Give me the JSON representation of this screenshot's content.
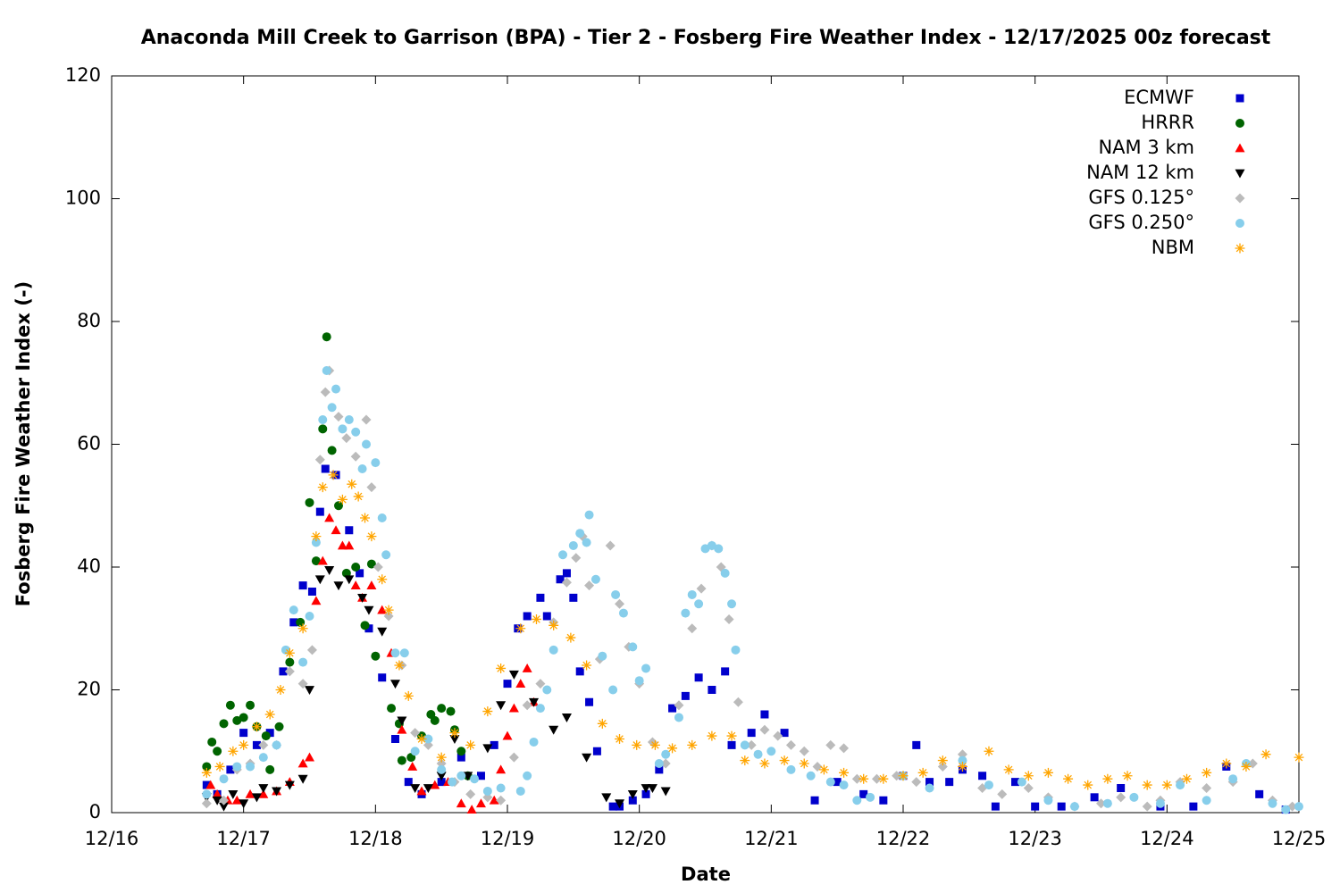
{
  "chart_data": {
    "type": "scatter",
    "title": "Anaconda Mill Creek to Garrison (BPA) - Tier 2 - Fosberg Fire Weather Index - 12/17/2025 00z forecast",
    "x_label": "Date",
    "y_label": "Fosberg Fire Weather Index (-)",
    "xlim": [
      0,
      9
    ],
    "xticks": [
      {
        "value": 0,
        "label": "12/16"
      },
      {
        "value": 1,
        "label": "12/17"
      },
      {
        "value": 2,
        "label": "12/18"
      },
      {
        "value": 3,
        "label": "12/19"
      },
      {
        "value": 4,
        "label": "12/20"
      },
      {
        "value": 5,
        "label": "12/21"
      },
      {
        "value": 6,
        "label": "12/22"
      },
      {
        "value": 7,
        "label": "12/23"
      },
      {
        "value": 8,
        "label": "12/24"
      },
      {
        "value": 9,
        "label": "12/25"
      }
    ],
    "ylim": [
      0,
      120
    ],
    "yticks": [
      0,
      20,
      40,
      60,
      80,
      100,
      120
    ],
    "grid": false,
    "legend": "top-right",
    "series": [
      {
        "name": "ECMWF",
        "color": "#0000cc",
        "marker": "square",
        "x": [
          0.72,
          0.8,
          0.9,
          1.0,
          1.1,
          1.2,
          1.3,
          1.38,
          1.45,
          1.52,
          1.58,
          1.62,
          1.7,
          1.8,
          1.88,
          1.95,
          2.05,
          2.15,
          2.25,
          2.35,
          2.5,
          2.65,
          2.8,
          2.9,
          3.0,
          3.08,
          3.15,
          3.25,
          3.3,
          3.4,
          3.45,
          3.5,
          3.55,
          3.62,
          3.68,
          3.8,
          3.85,
          3.95,
          4.05,
          4.15,
          4.25,
          4.35,
          4.45,
          4.55,
          4.65,
          4.7,
          4.85,
          4.95,
          5.1,
          5.33,
          5.5,
          5.7,
          5.85,
          6.0,
          6.1,
          6.2,
          6.35,
          6.45,
          6.6,
          6.7,
          6.85,
          7.0,
          7.2,
          7.45,
          7.65,
          7.95,
          8.2,
          8.45,
          8.7,
          8.9
        ],
        "values": [
          4.5,
          3,
          7,
          13,
          11,
          13,
          23,
          31,
          37,
          36,
          49,
          56,
          55,
          46,
          39,
          30,
          22,
          12,
          5,
          3,
          5,
          9,
          6,
          11,
          21,
          30,
          32,
          35,
          32,
          38,
          39,
          35,
          23,
          18,
          10,
          1,
          1,
          2,
          3,
          7,
          17,
          19,
          22,
          20,
          23,
          11,
          13,
          16,
          13,
          2,
          5,
          3,
          2,
          6,
          11,
          5,
          5,
          7,
          6,
          1,
          5,
          1,
          1,
          2.5,
          4,
          1,
          1,
          7.5,
          3,
          0.5
        ]
      },
      {
        "name": "HRRR",
        "color": "#006400",
        "marker": "circle",
        "x": [
          0.72,
          0.76,
          0.8,
          0.85,
          0.9,
          0.95,
          1.0,
          1.05,
          1.1,
          1.17,
          1.2,
          1.27,
          1.35,
          1.43,
          1.5,
          1.55,
          1.6,
          1.63,
          1.67,
          1.72,
          1.78,
          1.85,
          1.92,
          1.97,
          2.0,
          2.12,
          2.18,
          2.2,
          2.27,
          2.35,
          2.42,
          2.45,
          2.5,
          2.57,
          2.6,
          2.65,
          2.7
        ],
        "values": [
          7.5,
          11.5,
          10,
          14.5,
          17.5,
          15,
          15.5,
          17.5,
          14,
          12.5,
          7,
          14,
          24.5,
          31,
          50.5,
          41,
          62.5,
          77.5,
          59,
          50,
          39,
          40,
          30.5,
          40.5,
          25.5,
          17,
          14.5,
          8.5,
          9,
          12.5,
          16,
          15,
          17,
          16.5,
          13.5,
          10,
          6
        ]
      },
      {
        "name": "NAM 3 km",
        "color": "#ff0000",
        "marker": "triangle-up",
        "x": [
          0.75,
          0.8,
          0.88,
          0.95,
          1.05,
          1.15,
          1.25,
          1.35,
          1.45,
          1.5,
          1.55,
          1.6,
          1.65,
          1.7,
          1.75,
          1.8,
          1.85,
          1.9,
          1.97,
          2.05,
          2.12,
          2.2,
          2.28,
          2.35,
          2.45,
          2.55,
          2.65,
          2.73,
          2.8,
          2.9,
          2.95,
          3.0,
          3.05,
          3.1,
          3.15,
          3.2
        ],
        "values": [
          4.5,
          3,
          2,
          2,
          3,
          3,
          3.5,
          5,
          8,
          9,
          34.5,
          41,
          48,
          46,
          43.5,
          43.5,
          37,
          35,
          37,
          33,
          26,
          13.5,
          7.5,
          3.5,
          4.5,
          5,
          1.5,
          0.5,
          1.5,
          2,
          7,
          12.5,
          17,
          21,
          23.5,
          18
        ]
      },
      {
        "name": "NAM 12 km",
        "color": "#000000",
        "marker": "triangle-down",
        "x": [
          0.72,
          0.8,
          0.85,
          0.92,
          1.0,
          1.1,
          1.15,
          1.25,
          1.35,
          1.45,
          1.5,
          1.58,
          1.65,
          1.72,
          1.8,
          1.9,
          1.95,
          2.05,
          2.15,
          2.2,
          2.3,
          2.4,
          2.5,
          2.6,
          2.7,
          2.85,
          2.95,
          3.05,
          3.2,
          3.35,
          3.45,
          3.6,
          3.75,
          3.85,
          3.95,
          4.05,
          4.1,
          4.2
        ],
        "values": [
          2.5,
          2,
          1,
          3,
          1.5,
          2.5,
          4,
          3.5,
          4.5,
          5.5,
          20,
          38,
          39.5,
          37,
          38,
          35,
          33,
          29.5,
          21,
          15,
          4,
          4,
          6,
          12,
          6,
          10.5,
          17.5,
          22.5,
          18,
          13.5,
          15.5,
          9,
          2.5,
          1.5,
          3,
          4,
          4,
          3.5
        ]
      },
      {
        "name": "GFS 0.125°",
        "color": "#bbbbbb",
        "marker": "diamond",
        "x": [
          0.72,
          0.85,
          0.95,
          1.05,
          1.15,
          1.25,
          1.35,
          1.45,
          1.52,
          1.58,
          1.62,
          1.65,
          1.72,
          1.78,
          1.85,
          1.93,
          1.97,
          2.02,
          2.1,
          2.2,
          2.3,
          2.4,
          2.5,
          2.6,
          2.72,
          2.85,
          2.95,
          3.05,
          3.15,
          3.25,
          3.35,
          3.45,
          3.52,
          3.57,
          3.62,
          3.7,
          3.78,
          3.85,
          3.92,
          4.0,
          4.1,
          4.2,
          4.3,
          4.4,
          4.47,
          4.55,
          4.62,
          4.68,
          4.75,
          4.85,
          4.95,
          5.05,
          5.15,
          5.25,
          5.35,
          5.45,
          5.55,
          5.65,
          5.8,
          5.95,
          6.1,
          6.3,
          6.45,
          6.6,
          6.75,
          6.95,
          7.1,
          7.3,
          7.5,
          7.65,
          7.85,
          7.95,
          8.1,
          8.3,
          8.5,
          8.65,
          8.8,
          8.95
        ],
        "values": [
          1.5,
          2,
          7,
          8,
          11,
          11,
          23,
          21,
          26.5,
          57.5,
          68.5,
          72,
          64.5,
          61,
          58,
          64,
          53,
          40,
          32,
          24,
          13,
          11,
          8,
          5,
          3,
          2.5,
          2,
          9,
          17.5,
          21,
          31,
          37.5,
          41.5,
          45,
          37,
          25,
          43.5,
          34,
          27,
          21,
          11.5,
          8,
          17.5,
          30,
          36.5,
          43.5,
          40,
          31.5,
          18,
          11,
          13.5,
          12.5,
          11,
          10,
          7.5,
          11,
          10.5,
          5.5,
          5.5,
          6,
          5,
          7.5,
          9.5,
          4,
          3,
          4,
          2.5,
          1,
          1.5,
          2.5,
          1,
          2,
          5,
          4,
          5,
          8,
          2,
          1
        ]
      },
      {
        "name": "GFS 0.250°",
        "color": "#87ceeb",
        "marker": "circle",
        "x": [
          0.72,
          0.85,
          0.95,
          1.05,
          1.15,
          1.25,
          1.32,
          1.38,
          1.45,
          1.5,
          1.55,
          1.6,
          1.63,
          1.67,
          1.7,
          1.75,
          1.8,
          1.85,
          1.9,
          1.93,
          2.0,
          2.05,
          2.08,
          2.15,
          2.22,
          2.3,
          2.4,
          2.5,
          2.58,
          2.65,
          2.75,
          2.85,
          2.95,
          3.1,
          3.15,
          3.2,
          3.25,
          3.3,
          3.35,
          3.42,
          3.5,
          3.55,
          3.6,
          3.62,
          3.67,
          3.72,
          3.8,
          3.82,
          3.88,
          3.95,
          4.0,
          4.05,
          4.15,
          4.2,
          4.3,
          4.35,
          4.4,
          4.45,
          4.5,
          4.55,
          4.6,
          4.65,
          4.7,
          4.73,
          4.8,
          4.9,
          5.0,
          5.15,
          5.3,
          5.45,
          5.55,
          5.65,
          5.75,
          6.0,
          6.2,
          6.45,
          6.65,
          6.9,
          7.1,
          7.3,
          7.55,
          7.75,
          7.95,
          8.1,
          8.3,
          8.5,
          8.6,
          8.8,
          8.9,
          9.0
        ],
        "values": [
          3,
          5.5,
          7.5,
          7.5,
          9,
          11,
          26.5,
          33,
          24.5,
          32,
          44,
          64,
          72,
          66,
          69,
          62.5,
          64,
          62,
          56,
          60,
          57,
          48,
          42,
          26,
          26,
          10,
          12,
          7,
          5,
          6,
          5.5,
          3.5,
          4,
          3.5,
          6,
          11.5,
          17,
          20,
          26.5,
          42,
          43.5,
          45.5,
          44,
          48.5,
          38,
          25.5,
          20,
          35.5,
          32.5,
          27,
          21.5,
          23.5,
          8,
          9.5,
          15.5,
          32.5,
          35.5,
          34,
          43,
          43.5,
          43,
          39,
          34,
          26.5,
          11,
          9.5,
          10,
          7,
          6,
          5,
          4.5,
          2,
          2.5,
          6,
          4,
          8.5,
          4.5,
          5,
          2,
          1,
          1.5,
          2.5,
          1.5,
          4.5,
          2,
          5.5,
          8,
          1.5,
          0.5,
          1
        ]
      },
      {
        "name": "NBM",
        "color": "#ffa500",
        "marker": "asterisk",
        "x": [
          0.72,
          0.82,
          0.92,
          1.0,
          1.1,
          1.2,
          1.28,
          1.35,
          1.45,
          1.55,
          1.6,
          1.68,
          1.75,
          1.82,
          1.87,
          1.92,
          1.97,
          2.05,
          2.1,
          2.18,
          2.25,
          2.35,
          2.5,
          2.6,
          2.72,
          2.85,
          2.95,
          3.1,
          3.22,
          3.35,
          3.48,
          3.6,
          3.72,
          3.85,
          3.98,
          4.12,
          4.25,
          4.4,
          4.55,
          4.7,
          4.8,
          4.95,
          5.1,
          5.25,
          5.4,
          5.55,
          5.7,
          5.85,
          6.0,
          6.15,
          6.3,
          6.45,
          6.65,
          6.8,
          6.95,
          7.1,
          7.25,
          7.4,
          7.55,
          7.7,
          7.85,
          8.0,
          8.15,
          8.3,
          8.45,
          8.6,
          8.75,
          9.0
        ],
        "values": [
          6.5,
          7.5,
          10,
          11,
          14,
          16,
          20,
          26,
          30,
          45,
          53,
          55,
          51,
          53.5,
          51.5,
          48,
          45,
          38,
          33,
          24,
          19,
          12,
          9,
          13,
          11,
          16.5,
          23.5,
          30,
          31.5,
          30.5,
          28.5,
          24,
          14.5,
          12,
          11,
          11,
          10.5,
          11,
          12.5,
          12.5,
          8.5,
          8,
          8.5,
          8,
          7,
          6.5,
          5.5,
          5.5,
          6,
          6.5,
          8.5,
          7.5,
          10,
          7,
          6,
          6.5,
          5.5,
          4.5,
          5.5,
          6,
          4.5,
          4.5,
          5.5,
          6.5,
          8,
          7.5,
          9.5,
          9
        ]
      }
    ]
  }
}
